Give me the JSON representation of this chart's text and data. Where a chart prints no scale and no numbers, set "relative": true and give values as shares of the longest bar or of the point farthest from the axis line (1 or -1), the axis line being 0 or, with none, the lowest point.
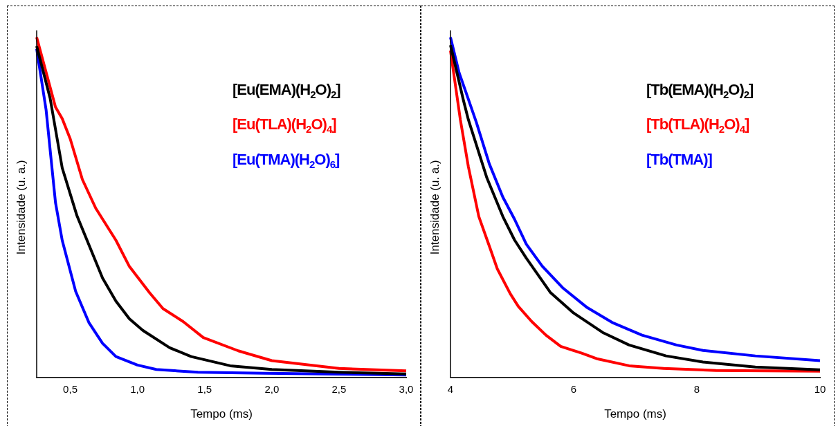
{
  "chart_data": [
    {
      "type": "line",
      "relative": true,
      "xlabel": "Tempo (ms)",
      "ylabel": "Intensidade (u. a.)",
      "xlim": [
        0.25,
        3.0
      ],
      "xticks": [
        {
          "value": 0.5,
          "label": "0,5"
        },
        {
          "value": 1.0,
          "label": "1,0"
        },
        {
          "value": 1.5,
          "label": "1,5"
        },
        {
          "value": 2.0,
          "label": "2,0"
        },
        {
          "value": 2.5,
          "label": "2,5"
        },
        {
          "value": 3.0,
          "label": "3,0"
        }
      ],
      "legend": "top right",
      "grid": false,
      "marker": "none",
      "line_style": "solid",
      "series": [
        {
          "name": "[Eu(EMA)(H$_{2}$O)$_{2}$]",
          "color": "#000000",
          "x": [
            0.25,
            0.35,
            0.44,
            0.55,
            0.74,
            0.84,
            0.94,
            1.04,
            1.24,
            1.4,
            1.69,
            2.0,
            2.5,
            3.0
          ],
          "values": [
            0.974,
            0.821,
            0.616,
            0.475,
            0.292,
            0.224,
            0.172,
            0.138,
            0.087,
            0.061,
            0.034,
            0.023,
            0.015,
            0.01
          ]
        },
        {
          "name": "[Eu(TLA)(H$_{2}$O)$_{4}$]",
          "color": "#ff0000",
          "x": [
            0.25,
            0.39,
            0.44,
            0.5,
            0.59,
            0.69,
            0.84,
            0.94,
            1.09,
            1.19,
            1.34,
            1.49,
            1.75,
            2.0,
            2.5,
            3.0
          ],
          "values": [
            1.0,
            0.795,
            0.761,
            0.701,
            0.582,
            0.497,
            0.403,
            0.326,
            0.249,
            0.202,
            0.164,
            0.117,
            0.078,
            0.049,
            0.026,
            0.019
          ]
        },
        {
          "name": "[Eu(TMA)(H$_{2}$O)$_{6}$]",
          "color": "#0000ff",
          "x": [
            0.25,
            0.32,
            0.39,
            0.44,
            0.54,
            0.64,
            0.74,
            0.84,
            1.0,
            1.14,
            1.45,
            1.95,
            3.0
          ],
          "values": [
            0.966,
            0.787,
            0.514,
            0.403,
            0.253,
            0.16,
            0.1,
            0.061,
            0.036,
            0.023,
            0.015,
            0.012,
            0.007
          ]
        }
      ]
    },
    {
      "type": "line",
      "relative": true,
      "xlabel": "Tempo (ms)",
      "ylabel": "Intensidade (u. a.)",
      "xlim": [
        4,
        10
      ],
      "xticks": [
        4,
        6,
        8,
        10
      ],
      "legend": "top right",
      "grid": false,
      "marker": "none",
      "line_style": "solid",
      "series": [
        {
          "name": "[Tb(EMA)(H$_{2}$O)$_{2}$]",
          "color": "#000000",
          "x": [
            4,
            4.21,
            4.29,
            4.59,
            4.85,
            5.04,
            5.23,
            5.62,
            6.0,
            6.47,
            6.9,
            7.5,
            8.1,
            8.95,
            10
          ],
          "values": [
            0.977,
            0.815,
            0.758,
            0.587,
            0.473,
            0.404,
            0.351,
            0.25,
            0.189,
            0.132,
            0.095,
            0.063,
            0.045,
            0.03,
            0.022
          ]
        },
        {
          "name": "[Tb(TLA)(H$_{2}$O)$_{4}$]",
          "color": "#ff0000",
          "x": [
            4,
            4.16,
            4.29,
            4.46,
            4.65,
            4.76,
            4.97,
            5.1,
            5.32,
            5.55,
            5.79,
            6.13,
            6.39,
            6.9,
            7.46,
            8.31,
            10
          ],
          "values": [
            0.961,
            0.758,
            0.62,
            0.473,
            0.376,
            0.319,
            0.246,
            0.209,
            0.164,
            0.124,
            0.091,
            0.071,
            0.054,
            0.034,
            0.026,
            0.02,
            0.018
          ]
        },
        {
          "name": "[Tb(TMA)]",
          "color": "#0000ff",
          "x": [
            4,
            4.14,
            4.25,
            4.42,
            4.63,
            4.85,
            5.04,
            5.23,
            5.49,
            5.83,
            6.22,
            6.64,
            7.11,
            7.67,
            8.1,
            8.95,
            10
          ],
          "values": [
            1.0,
            0.896,
            0.839,
            0.75,
            0.628,
            0.53,
            0.465,
            0.392,
            0.327,
            0.262,
            0.205,
            0.16,
            0.124,
            0.095,
            0.079,
            0.063,
            0.049
          ]
        }
      ]
    }
  ]
}
